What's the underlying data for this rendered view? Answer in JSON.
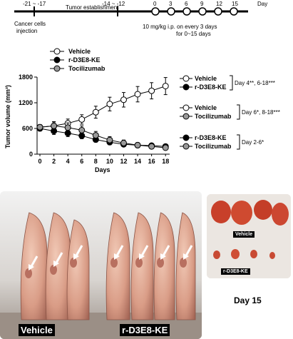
{
  "timeline": {
    "labels": [
      "-21 ~ -17",
      "-14 ~ -12",
      "0",
      "3",
      "6",
      "9",
      "12",
      "15"
    ],
    "unit": "Day",
    "phase_label": "Tumor establishment",
    "injection_label_line1": "Cancer cells",
    "injection_label_line2": "injection",
    "treatment_line1": "10 mg/kg i.p. on every 3 days",
    "treatment_line2": "for 0~15 days"
  },
  "chart_data": {
    "type": "line",
    "xlabel": "Days",
    "ylabel": "Tumor volume (mm³)",
    "xlim": [
      0,
      19
    ],
    "ylim": [
      0,
      1800
    ],
    "xticks": [
      0,
      2,
      4,
      6,
      8,
      10,
      12,
      14,
      16,
      18
    ],
    "yticks": [
      0,
      600,
      1200,
      1800
    ],
    "x": [
      0,
      2,
      4,
      6,
      8,
      10,
      12,
      14,
      16,
      18
    ],
    "series": [
      {
        "name": "Vehicle",
        "color": "#ffffff",
        "values": [
          630,
          660,
          720,
          810,
          980,
          1170,
          1270,
          1400,
          1480,
          1590
        ],
        "errors": [
          60,
          90,
          100,
          110,
          140,
          160,
          170,
          180,
          190,
          200
        ]
      },
      {
        "name": "r-D3E8-KE",
        "color": "#000000",
        "values": [
          600,
          540,
          490,
          430,
          340,
          280,
          230,
          210,
          200,
          180
        ],
        "errors": [
          60,
          80,
          80,
          70,
          60,
          60,
          55,
          55,
          50,
          50
        ]
      },
      {
        "name": "Tocilizumab",
        "color": "#999999",
        "values": [
          630,
          660,
          620,
          560,
          440,
          330,
          260,
          210,
          180,
          150
        ],
        "errors": [
          60,
          100,
          110,
          100,
          90,
          80,
          70,
          60,
          55,
          50
        ]
      }
    ],
    "legend": [
      "Vehicle",
      "r-D3E8-KE",
      "Tocilizumab"
    ],
    "comparisons": [
      {
        "a": "Vehicle",
        "b": "r-D3E8-KE",
        "label": "Day 4**, 6-18***"
      },
      {
        "a": "Vehicle",
        "b": "Tocilizumab",
        "label": "Day 6*, 8-18***"
      },
      {
        "a": "r-D3E8-KE",
        "b": "Tocilizumab",
        "label": "Day 2-6*"
      }
    ]
  },
  "photos": {
    "mice_left_label": "Vehicle",
    "mice_right_label": "r-D3E8-KE",
    "tumors_top_label": "Vehicle",
    "tumors_bottom_label": "r-D3E8-KE",
    "day_label": "Day 15"
  }
}
